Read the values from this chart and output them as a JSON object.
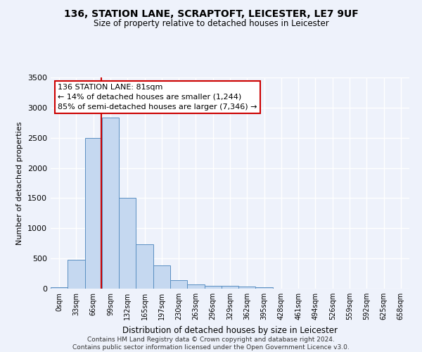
{
  "title": "136, STATION LANE, SCRAPTOFT, LEICESTER, LE7 9UF",
  "subtitle": "Size of property relative to detached houses in Leicester",
  "xlabel": "Distribution of detached houses by size in Leicester",
  "ylabel": "Number of detached properties",
  "bar_categories": [
    "0sqm",
    "33sqm",
    "66sqm",
    "99sqm",
    "132sqm",
    "165sqm",
    "197sqm",
    "230sqm",
    "263sqm",
    "296sqm",
    "329sqm",
    "362sqm",
    "395sqm",
    "428sqm",
    "461sqm",
    "494sqm",
    "526sqm",
    "559sqm",
    "592sqm",
    "625sqm",
    "658sqm"
  ],
  "bar_values": [
    20,
    480,
    2500,
    2830,
    1510,
    740,
    390,
    145,
    75,
    50,
    50,
    30,
    20,
    0,
    0,
    0,
    0,
    0,
    0,
    0,
    0
  ],
  "bar_color": "#c5d8f0",
  "bar_edge_color": "#5a8fc2",
  "property_line_x": 2.45,
  "property_line_color": "#cc0000",
  "annotation_text": "136 STATION LANE: 81sqm\n← 14% of detached houses are smaller (1,244)\n85% of semi-detached houses are larger (7,346) →",
  "annotation_box_color": "#cc0000",
  "ylim": [
    0,
    3500
  ],
  "yticks": [
    0,
    500,
    1000,
    1500,
    2000,
    2500,
    3000,
    3500
  ],
  "background_color": "#eef2fb",
  "grid_color": "#ffffff",
  "footer_line1": "Contains HM Land Registry data © Crown copyright and database right 2024.",
  "footer_line2": "Contains public sector information licensed under the Open Government Licence v3.0."
}
